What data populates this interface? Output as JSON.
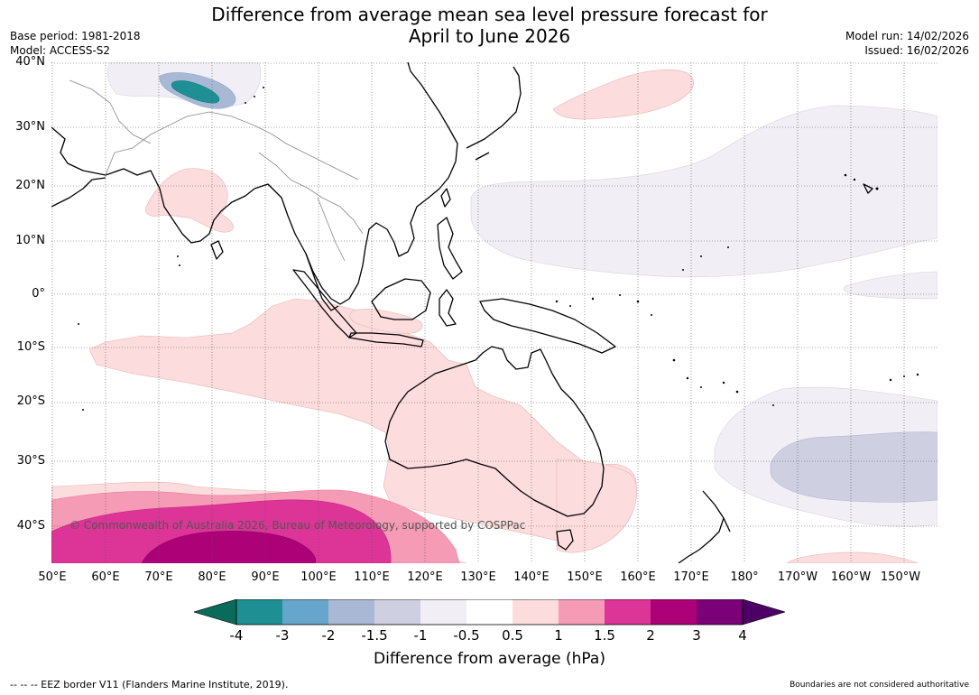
{
  "title": {
    "line1": "Difference from average mean sea level pressure forecast for",
    "line2": "April to June 2026"
  },
  "meta": {
    "base_period": "Base period: 1981-2018",
    "model": "Model: ACCESS-S2",
    "model_run": "Model run: 14/02/2026",
    "issued": "Issued: 16/02/2026"
  },
  "map": {
    "latitude_labels": [
      "40°N",
      "30°N",
      "20°N",
      "10°N",
      "0°",
      "10°S",
      "20°S",
      "30°S",
      "40°S"
    ],
    "longitude_labels": [
      "50°E",
      "60°E",
      "70°E",
      "80°E",
      "90°E",
      "100°E",
      "110°E",
      "120°E",
      "130°E",
      "140°E",
      "150°E",
      "160°E",
      "170°E",
      "180°",
      "170°W",
      "160°W",
      "150°W"
    ],
    "copyright": "© Commonwealth of Australia 2026, Bureau of Meteorology, supported by COSPPac"
  },
  "colorbar": {
    "label": "Difference from average (hPa)",
    "ticks": [
      "-4",
      "-3",
      "-2",
      "-1.5",
      "-1",
      "-0.5",
      "0.5",
      "1",
      "1.5",
      "2",
      "3",
      "4"
    ],
    "colors": {
      "below_min": "#0a6b5a",
      "c1": "#1e9094",
      "c2": "#66a6cc",
      "c3": "#a9b9d5",
      "c4": "#cfcfe2",
      "c5": "#f1eef5",
      "c6": "#ffffff",
      "c7": "#fcdcdc",
      "c8": "#f69bb6",
      "c9": "#dd3497",
      "c10": "#ad0178",
      "c11": "#7a0177",
      "above_max": "#4d0066"
    }
  },
  "footer": {
    "eez_note": "--  --  -- EEZ border V11 (Flanders Marine Institute, 2019).",
    "boundaries_note": "Boundaries are not considered authoritative"
  }
}
